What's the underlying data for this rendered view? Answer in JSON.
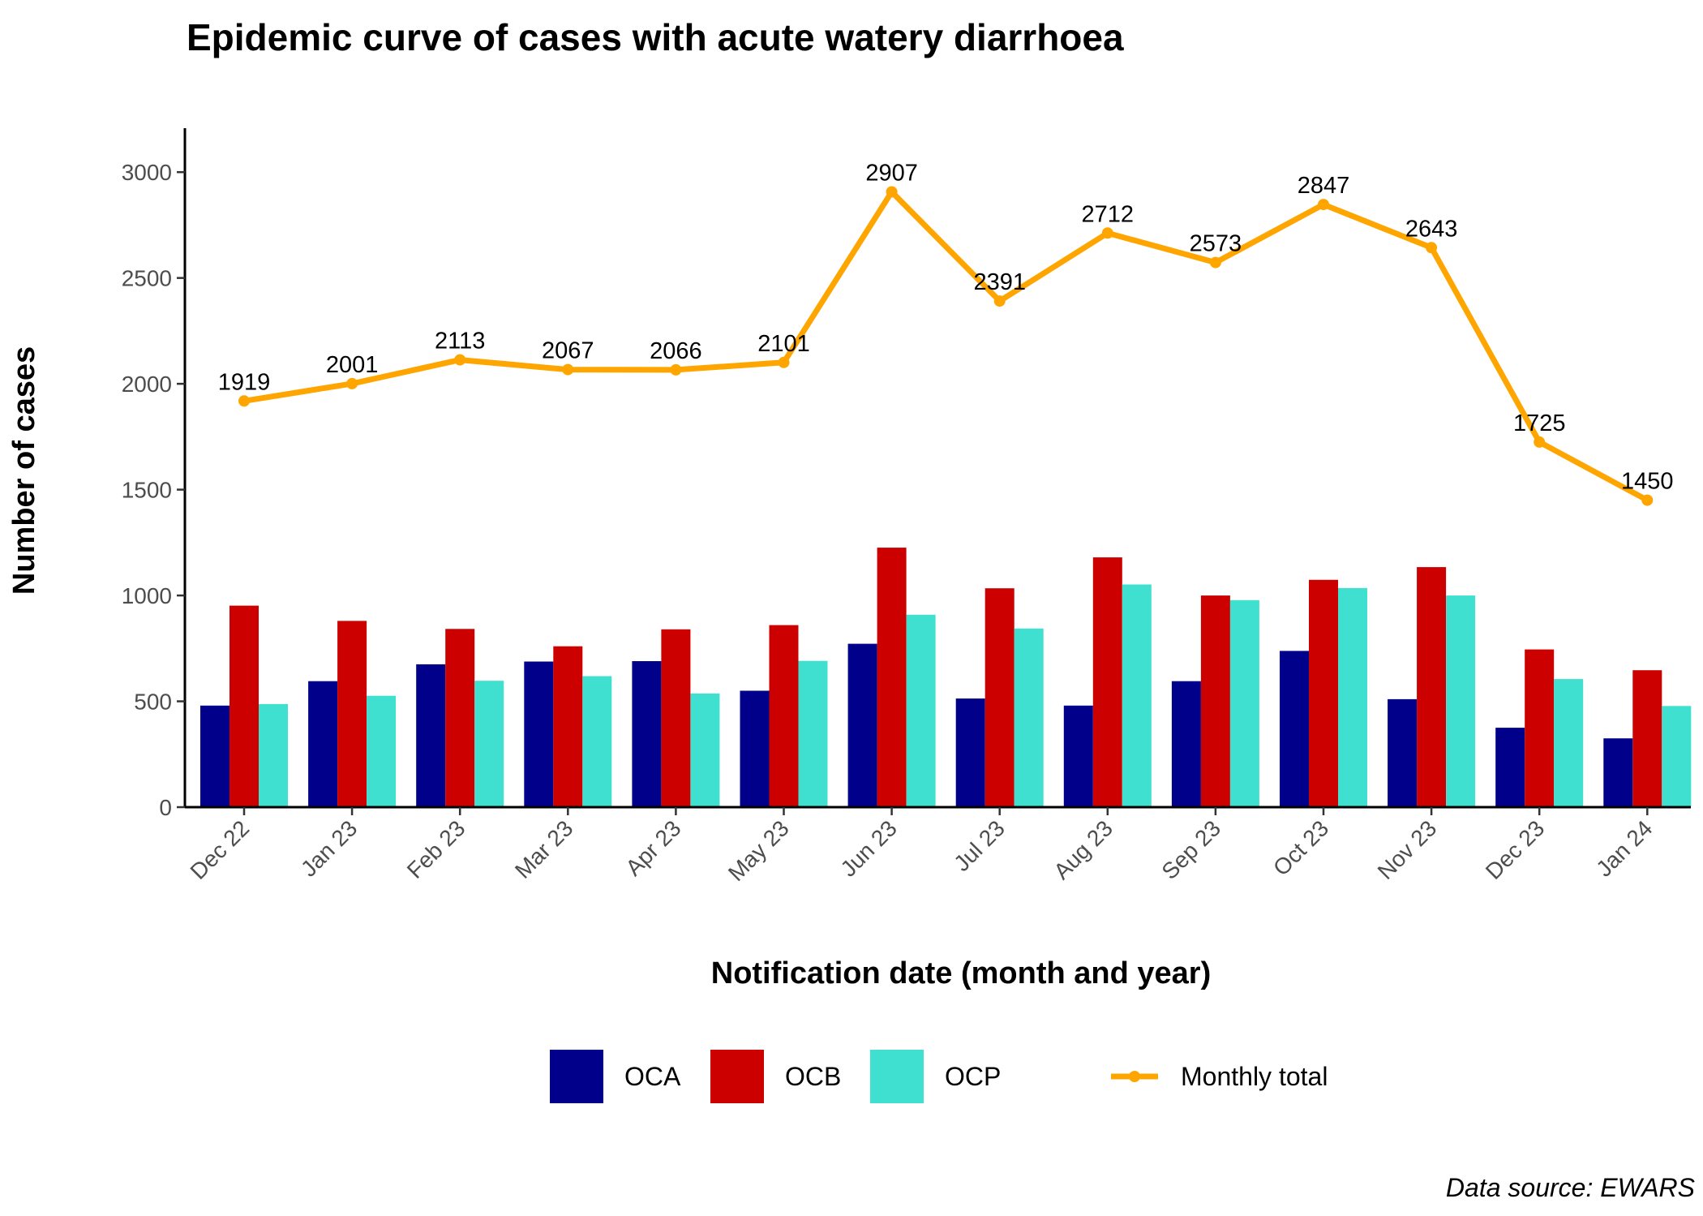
{
  "chart_data": {
    "type": "bar",
    "title": "Epidemic curve of cases with acute watery diarrhoea",
    "xlabel": "Notification date (month and year)",
    "ylabel": "Number of cases",
    "source": "Data source: EWARS",
    "ylim": [
      0,
      3200
    ],
    "yticks": [
      0,
      500,
      1000,
      1500,
      2000,
      2500,
      3000
    ],
    "grid": false,
    "legend_position": "bottom",
    "categories": [
      "Dec 22",
      "Jan 23",
      "Feb 23",
      "Mar 23",
      "Apr 23",
      "May 23",
      "Jun 23",
      "Jul 23",
      "Aug 23",
      "Sep 23",
      "Oct 23",
      "Nov 23",
      "Dec 23",
      "Jan 24"
    ],
    "series": [
      {
        "name": "OCA",
        "color": "#00008B",
        "values": [
          480,
          595,
          675,
          688,
          690,
          550,
          772,
          513,
          480,
          595,
          738,
          510,
          375,
          325
        ]
      },
      {
        "name": "OCB",
        "color": "#CD0000",
        "values": [
          952,
          880,
          842,
          760,
          840,
          860,
          1226,
          1034,
          1180,
          1000,
          1074,
          1134,
          745,
          647
        ]
      },
      {
        "name": "OCP",
        "color": "#40E0D0",
        "values": [
          487,
          526,
          597,
          619,
          537,
          691,
          909,
          844,
          1052,
          978,
          1035,
          1000,
          605,
          478
        ]
      }
    ],
    "line": {
      "name": "Monthly total",
      "color": "#FFA500",
      "values": [
        1919,
        2001,
        2113,
        2067,
        2066,
        2101,
        2907,
        2391,
        2712,
        2573,
        2847,
        2643,
        1725,
        1450
      ]
    }
  }
}
